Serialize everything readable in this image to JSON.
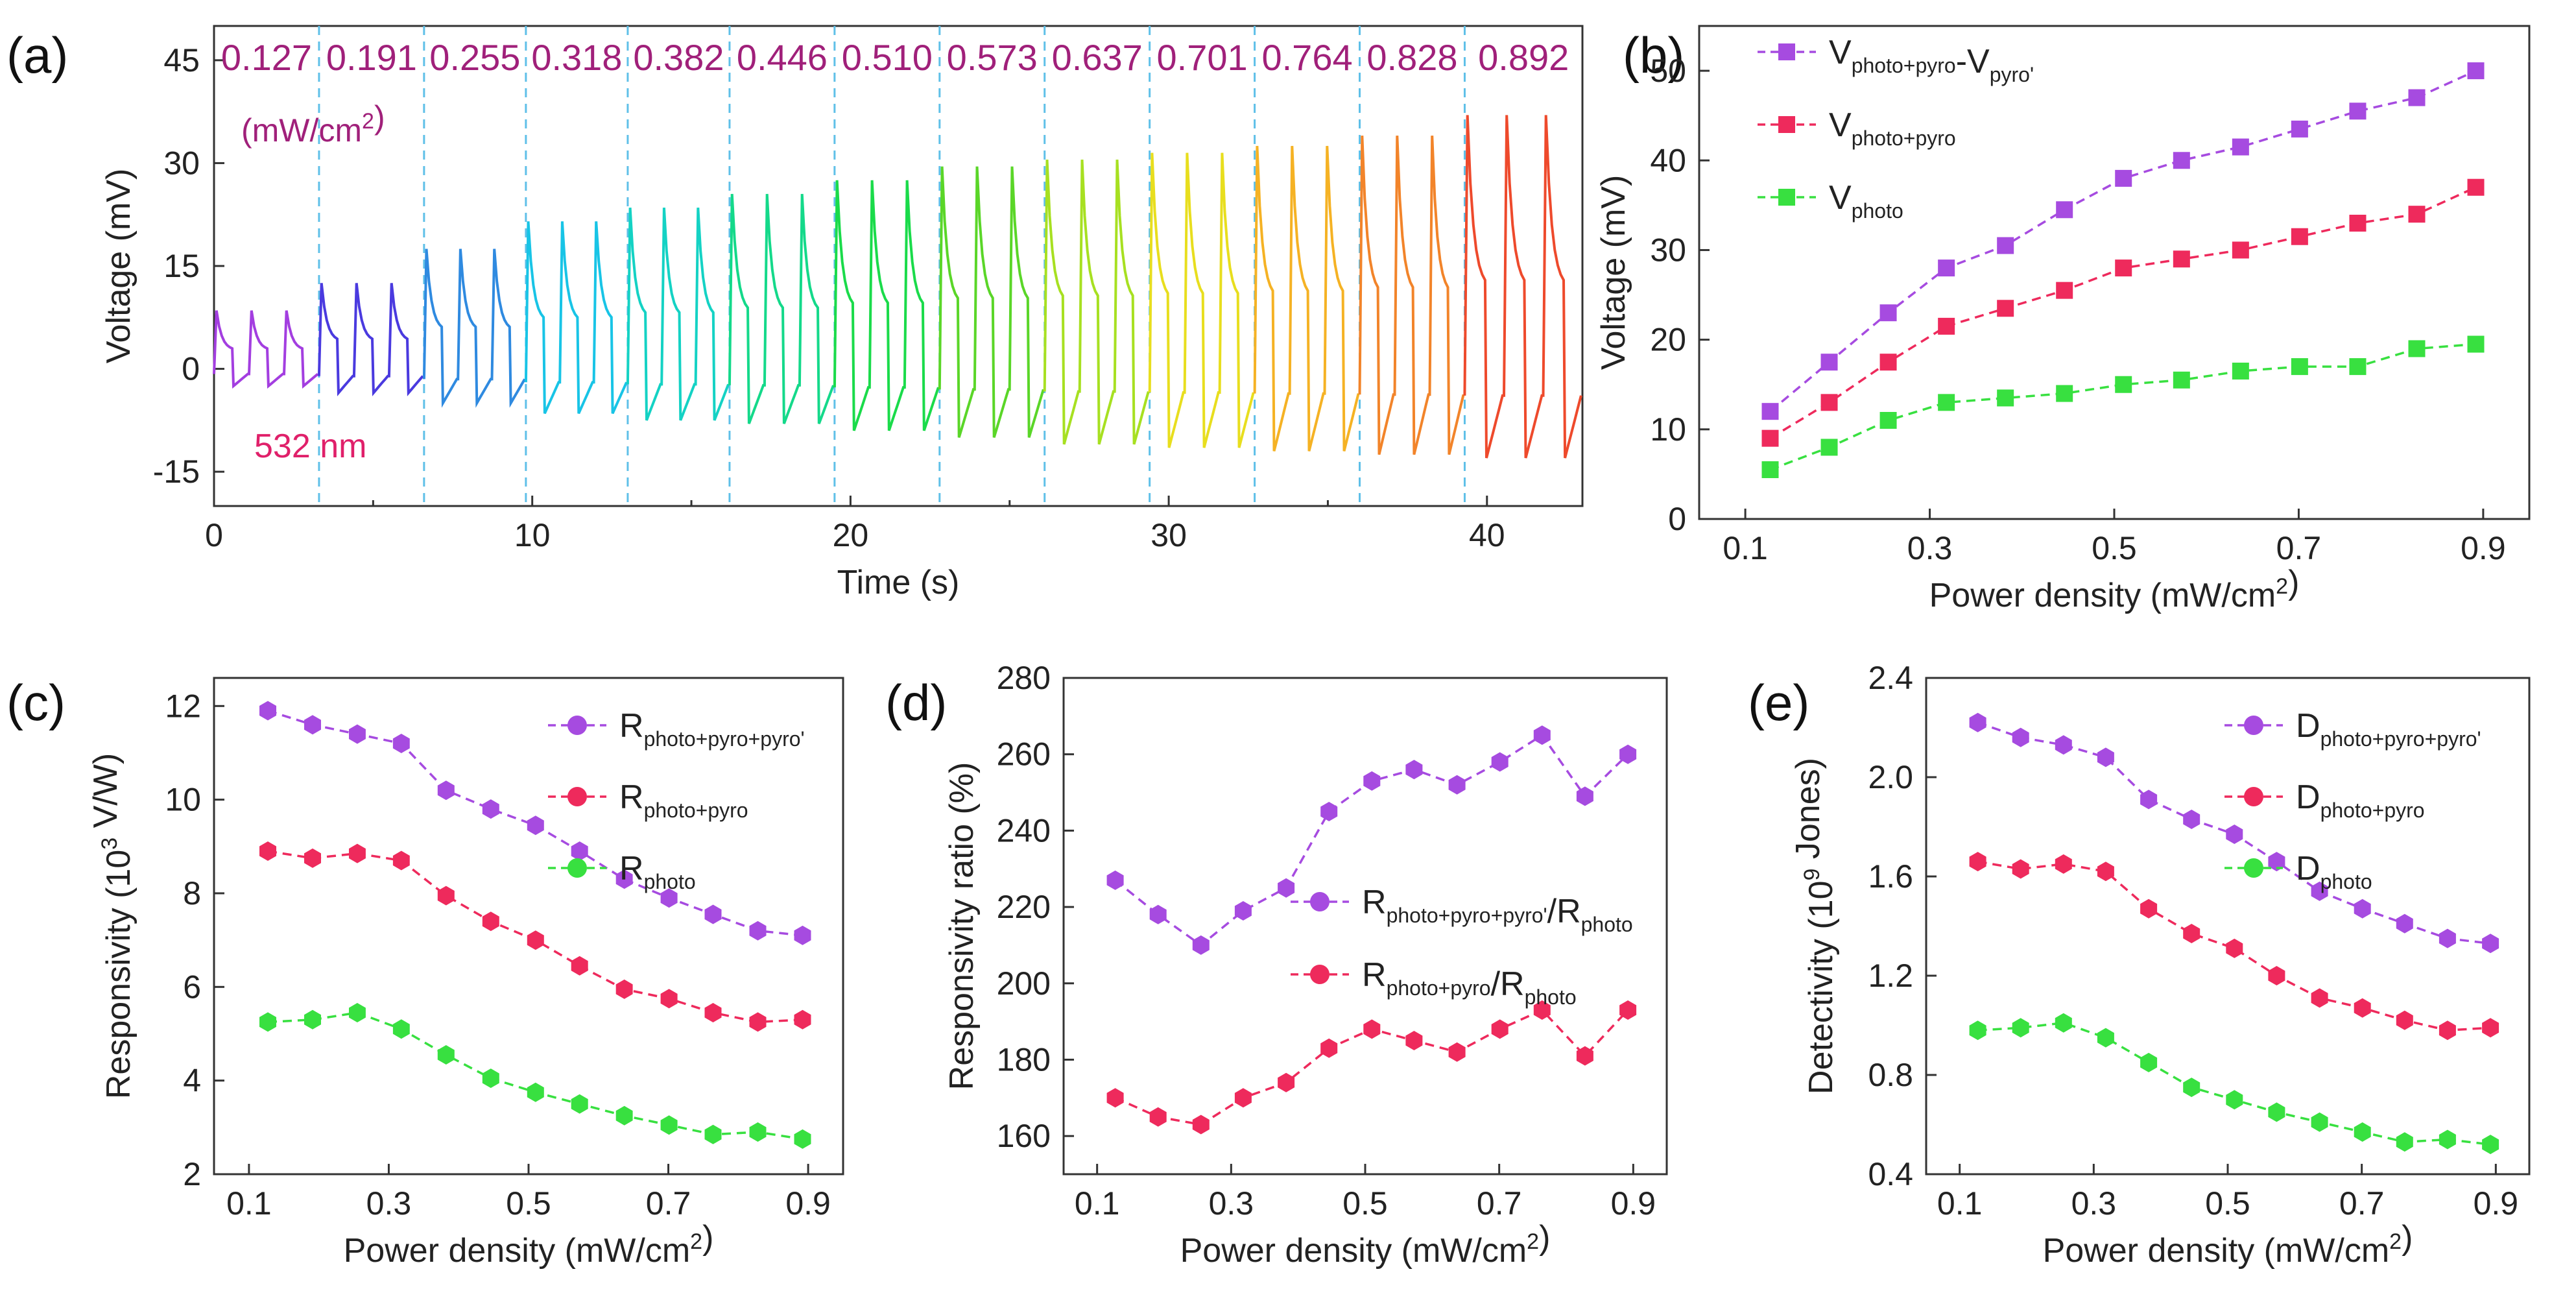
{
  "colors": {
    "purple": "#a64be0",
    "red": "#ee2a5c",
    "green": "#38e040",
    "magenta_text": "#a0207a",
    "pink_text": "#e0206a",
    "divider": "#5fc0e8"
  },
  "chart_data": [
    {
      "panel": "(a)",
      "type": "line",
      "xlabel": "Time (s)",
      "ylabel": "Voltage (mV)",
      "xlim": [
        0,
        43
      ],
      "ylim": [
        -20,
        50
      ],
      "xticks": [
        "0",
        "10",
        "20",
        "30",
        "40"
      ],
      "yticks": [
        "-15",
        "0",
        "15",
        "30",
        "45"
      ],
      "power_labels": [
        "0.127",
        "0.191",
        "0.255",
        "0.318",
        "0.382",
        "0.446",
        "0.510",
        "0.573",
        "0.637",
        "0.701",
        "0.764",
        "0.828",
        "0.892"
      ],
      "power_unit_label": "(mW/cm²)",
      "wavelength_label": "532 nm",
      "segment_boundaries_s": [
        0,
        3.3,
        6.6,
        9.8,
        13.0,
        16.2,
        19.5,
        22.8,
        26.1,
        29.4,
        32.7,
        36.0,
        39.3,
        43
      ],
      "segment_peak_mV": [
        8.5,
        12.5,
        17.5,
        21.5,
        23.5,
        25.5,
        27.5,
        29.5,
        30.5,
        31.5,
        32.5,
        34,
        37
      ],
      "segment_min_mV": [
        -2.5,
        -3.5,
        -5,
        -6.5,
        -7.5,
        -8,
        -9,
        -10,
        -11,
        -11.5,
        -12,
        -12.5,
        -13
      ],
      "segment_colors": [
        "#a33ee0",
        "#4a3adf",
        "#2f8ae0",
        "#18c4e6",
        "#14d2c4",
        "#14d98a",
        "#1adb4a",
        "#5ad628",
        "#a7e021",
        "#e8de1e",
        "#f5b224",
        "#f2842a",
        "#ee4a2c"
      ]
    },
    {
      "panel": "(b)",
      "type": "line",
      "xlabel": "Power density (mW/cm²)",
      "ylabel": "Voltage (mV)",
      "xlim": [
        0.05,
        0.95
      ],
      "ylim": [
        0,
        55
      ],
      "xticks": [
        "0.1",
        "0.3",
        "0.5",
        "0.7",
        "0.9"
      ],
      "yticks": [
        "0",
        "10",
        "20",
        "30",
        "40",
        "50"
      ],
      "x": [
        0.127,
        0.191,
        0.255,
        0.318,
        0.382,
        0.446,
        0.51,
        0.573,
        0.637,
        0.701,
        0.764,
        0.828,
        0.892
      ],
      "series": [
        {
          "name": "V",
          "sub": "photo+pyro",
          "suffix": "-V",
          "sub2": "pyro'",
          "color": "#a64be0",
          "values": [
            12,
            17.5,
            23,
            28,
            30.5,
            34.5,
            38,
            40,
            41.5,
            43.5,
            45.5,
            47,
            50
          ]
        },
        {
          "name": "V",
          "sub": "photo+pyro",
          "suffix": "",
          "sub2": "",
          "color": "#ee2a5c",
          "values": [
            9,
            13,
            17.5,
            21.5,
            23.5,
            25.5,
            28,
            29,
            30,
            31.5,
            33,
            34,
            37
          ]
        },
        {
          "name": "V",
          "sub": "photo",
          "suffix": "",
          "sub2": "",
          "color": "#38e040",
          "values": [
            5.5,
            8,
            11,
            13,
            13.5,
            14,
            15,
            15.5,
            16.5,
            17,
            17,
            19,
            19.5
          ]
        }
      ]
    },
    {
      "panel": "(c)",
      "type": "line",
      "xlabel": "Power density (mW/cm²)",
      "ylabel": "Responsivity (10³ V/W)",
      "xlim": [
        0.05,
        0.95
      ],
      "ylim": [
        2,
        12.6
      ],
      "xticks": [
        "0.1",
        "0.3",
        "0.5",
        "0.7",
        "0.9"
      ],
      "yticks": [
        "2",
        "4",
        "6",
        "8",
        "10",
        "12"
      ],
      "x": [
        0.127,
        0.191,
        0.255,
        0.318,
        0.382,
        0.446,
        0.51,
        0.573,
        0.637,
        0.701,
        0.764,
        0.828,
        0.892
      ],
      "series": [
        {
          "name": "R",
          "sub": "photo+pyro+pyro'",
          "color": "#a64be0",
          "values": [
            11.9,
            11.6,
            11.4,
            11.2,
            10.2,
            9.8,
            9.45,
            8.9,
            8.3,
            7.9,
            7.55,
            7.2,
            7.1
          ]
        },
        {
          "name": "R",
          "sub": "photo+pyro",
          "color": "#ee2a5c",
          "values": [
            8.9,
            8.75,
            8.85,
            8.7,
            7.95,
            7.4,
            7.0,
            6.45,
            5.95,
            5.75,
            5.45,
            5.25,
            5.3
          ]
        },
        {
          "name": "R",
          "sub": "photo",
          "color": "#38e040",
          "values": [
            5.25,
            5.3,
            5.45,
            5.1,
            4.55,
            4.05,
            3.75,
            3.5,
            3.25,
            3.05,
            2.85,
            2.9,
            2.75
          ]
        }
      ]
    },
    {
      "panel": "(d)",
      "type": "line",
      "xlabel": "Power density (mW/cm²)",
      "ylabel": "Responsivity ratio (%)",
      "xlim": [
        0.05,
        0.95
      ],
      "ylim": [
        150,
        280
      ],
      "xticks": [
        "0.1",
        "0.3",
        "0.5",
        "0.7",
        "0.9"
      ],
      "yticks": [
        "160",
        "180",
        "200",
        "220",
        "240",
        "260",
        "280"
      ],
      "x": [
        0.127,
        0.191,
        0.255,
        0.318,
        0.382,
        0.446,
        0.51,
        0.573,
        0.637,
        0.701,
        0.764,
        0.828,
        0.892
      ],
      "series": [
        {
          "name": "R",
          "sub": "photo+pyro+pyro'",
          "suffix": "/R",
          "sub2": "photo",
          "color": "#a64be0",
          "values": [
            227,
            218,
            210,
            219,
            225,
            245,
            253,
            256,
            252,
            258,
            265,
            249,
            260
          ]
        },
        {
          "name": "R",
          "sub": "photo+pyro",
          "suffix": "/R",
          "sub2": "photo",
          "color": "#ee2a5c",
          "values": [
            170,
            165,
            163,
            170,
            174,
            183,
            188,
            185,
            182,
            188,
            193,
            181,
            193
          ]
        }
      ]
    },
    {
      "panel": "(e)",
      "type": "line",
      "xlabel": "Power density (mW/cm²)",
      "ylabel": "Detectivity (10⁹ Jones)",
      "xlim": [
        0.05,
        0.95
      ],
      "ylim": [
        0.4,
        2.4
      ],
      "xticks": [
        "0.1",
        "0.3",
        "0.5",
        "0.7",
        "0.9"
      ],
      "yticks": [
        "0.4",
        "0.8",
        "1.2",
        "1.6",
        "2.0",
        "2.4"
      ],
      "x": [
        0.127,
        0.191,
        0.255,
        0.318,
        0.382,
        0.446,
        0.51,
        0.573,
        0.637,
        0.701,
        0.764,
        0.828,
        0.892
      ],
      "series": [
        {
          "name": "D",
          "sub": "photo+pyro+pyro'",
          "color": "#a64be0",
          "values": [
            2.22,
            2.16,
            2.13,
            2.08,
            1.91,
            1.83,
            1.77,
            1.66,
            1.54,
            1.47,
            1.41,
            1.35,
            1.33
          ]
        },
        {
          "name": "D",
          "sub": "photo+pyro",
          "color": "#ee2a5c",
          "values": [
            1.66,
            1.63,
            1.65,
            1.62,
            1.47,
            1.37,
            1.31,
            1.2,
            1.11,
            1.07,
            1.02,
            0.98,
            0.99
          ]
        },
        {
          "name": "D",
          "sub": "photo",
          "color": "#38e040",
          "values": [
            0.98,
            0.99,
            1.01,
            0.95,
            0.85,
            0.75,
            0.7,
            0.65,
            0.61,
            0.57,
            0.53,
            0.54,
            0.52
          ]
        }
      ]
    }
  ]
}
